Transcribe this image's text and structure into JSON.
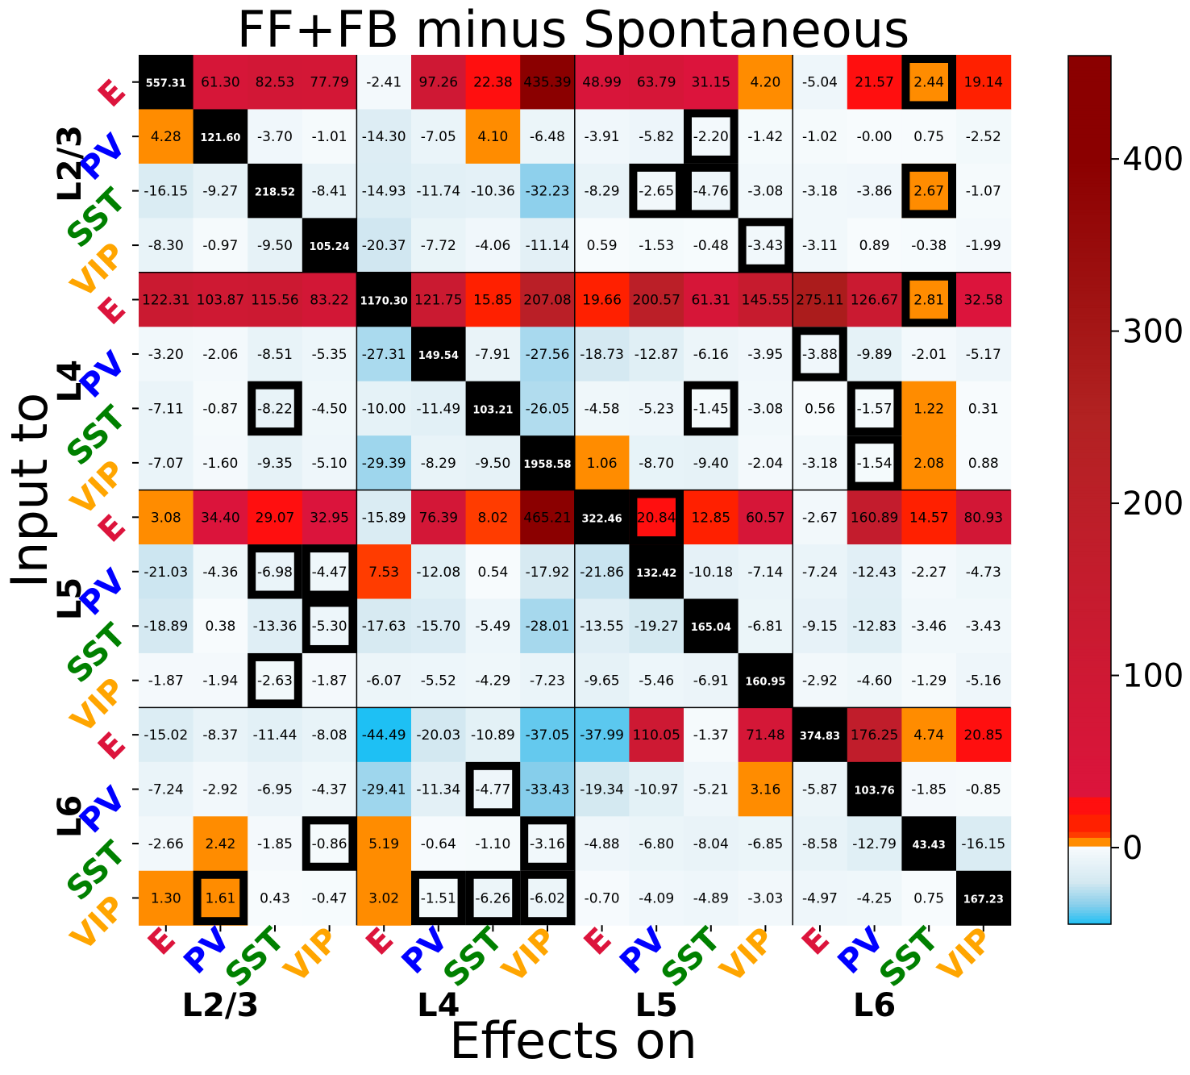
{
  "chart_data": {
    "type": "heatmap",
    "title": "FF+FB minus Spontaneous",
    "xlabel": "Effects on",
    "ylabel": "Input to",
    "layers": [
      "L2/3",
      "L4",
      "L5",
      "L6"
    ],
    "cell_types": [
      "E",
      "PV",
      "SST",
      "VIP"
    ],
    "type_colors": {
      "E": "#dc143c",
      "PV": "#0000ff",
      "SST": "#008000",
      "VIP": "#ffa500"
    },
    "values": [
      [
        "557.31",
        "61.30",
        "82.53",
        "77.79",
        "-2.41",
        "97.26",
        "22.38",
        "435.39",
        "48.99",
        "63.79",
        "31.15",
        "4.20",
        "-5.04",
        "21.57",
        "2.44",
        "19.14"
      ],
      [
        "4.28",
        "121.60",
        "-3.70",
        "-1.01",
        "-14.30",
        "-7.05",
        "4.10",
        "-6.48",
        "-3.91",
        "-5.82",
        "-2.20",
        "-1.42",
        "-1.02",
        "-0.00",
        "0.75",
        "-2.52"
      ],
      [
        "-16.15",
        "-9.27",
        "218.52",
        "-8.41",
        "-14.93",
        "-11.74",
        "-10.36",
        "-32.23",
        "-8.29",
        "-2.65",
        "-4.76",
        "-3.08",
        "-3.18",
        "-3.86",
        "2.67",
        "-1.07"
      ],
      [
        "-8.30",
        "-0.97",
        "-9.50",
        "105.24",
        "-20.37",
        "-7.72",
        "-4.06",
        "-11.14",
        "0.59",
        "-1.53",
        "-0.48",
        "-3.43",
        "-3.11",
        "0.89",
        "-0.38",
        "-1.99"
      ],
      [
        "122.31",
        "103.87",
        "115.56",
        "83.22",
        "1170.30",
        "121.75",
        "15.85",
        "207.08",
        "19.66",
        "200.57",
        "61.31",
        "145.55",
        "275.11",
        "126.67",
        "2.81",
        "32.58"
      ],
      [
        "-3.20",
        "-2.06",
        "-8.51",
        "-5.35",
        "-27.31",
        "149.54",
        "-7.91",
        "-27.56",
        "-18.73",
        "-12.87",
        "-6.16",
        "-3.95",
        "-3.88",
        "-9.89",
        "-2.01",
        "-5.17"
      ],
      [
        "-7.11",
        "-0.87",
        "-8.22",
        "-4.50",
        "-10.00",
        "-11.49",
        "103.21",
        "-26.05",
        "-4.58",
        "-5.23",
        "-1.45",
        "-3.08",
        "0.56",
        "-1.57",
        "1.22",
        "0.31"
      ],
      [
        "-7.07",
        "-1.60",
        "-9.35",
        "-5.10",
        "-29.39",
        "-8.29",
        "-9.50",
        "1958.58",
        "1.06",
        "-8.70",
        "-9.40",
        "-2.04",
        "-3.18",
        "-1.54",
        "2.08",
        "0.88"
      ],
      [
        "3.08",
        "34.40",
        "29.07",
        "32.95",
        "-15.89",
        "76.39",
        "8.02",
        "465.21",
        "322.46",
        "20.84",
        "12.85",
        "60.57",
        "-2.67",
        "160.89",
        "14.57",
        "80.93"
      ],
      [
        "-21.03",
        "-4.36",
        "-6.98",
        "-4.47",
        "7.53",
        "-12.08",
        "0.54",
        "-17.92",
        "-21.86",
        "132.42",
        "-10.18",
        "-7.14",
        "-7.24",
        "-12.43",
        "-2.27",
        "-4.73"
      ],
      [
        "-18.89",
        "0.38",
        "-13.36",
        "-5.30",
        "-17.63",
        "-15.70",
        "-5.49",
        "-28.01",
        "-13.55",
        "-19.27",
        "165.04",
        "-6.81",
        "-9.15",
        "-12.83",
        "-3.46",
        "-3.43"
      ],
      [
        "-1.87",
        "-1.94",
        "-2.63",
        "-1.87",
        "-6.07",
        "-5.52",
        "-4.29",
        "-7.23",
        "-9.65",
        "-5.46",
        "-6.91",
        "160.95",
        "-2.92",
        "-4.60",
        "-1.29",
        "-5.16"
      ],
      [
        "-15.02",
        "-8.37",
        "-11.44",
        "-8.08",
        "-44.49",
        "-20.03",
        "-10.89",
        "-37.05",
        "-37.99",
        "110.05",
        "-1.37",
        "71.48",
        "374.83",
        "176.25",
        "4.74",
        "20.85"
      ],
      [
        "-7.24",
        "-2.92",
        "-6.95",
        "-4.37",
        "-29.41",
        "-11.34",
        "-4.77",
        "-33.43",
        "-19.34",
        "-10.97",
        "-5.21",
        "3.16",
        "-5.87",
        "103.76",
        "-1.85",
        "-0.85"
      ],
      [
        "-2.66",
        "2.42",
        "-1.85",
        "-0.86",
        "5.19",
        "-0.64",
        "-1.10",
        "-3.16",
        "-4.88",
        "-6.80",
        "-8.04",
        "-6.85",
        "-8.58",
        "-12.79",
        "43.43",
        "-16.15"
      ],
      [
        "1.30",
        "1.61",
        "0.43",
        "-0.47",
        "3.02",
        "-1.51",
        "-6.26",
        "-6.02",
        "-0.70",
        "-4.09",
        "-4.89",
        "-3.03",
        "-4.97",
        "-4.25",
        "0.75",
        "167.23"
      ]
    ],
    "highlighted_cells": [
      [
        0,
        14
      ],
      [
        1,
        10
      ],
      [
        2,
        9
      ],
      [
        2,
        10
      ],
      [
        2,
        14
      ],
      [
        3,
        11
      ],
      [
        4,
        14
      ],
      [
        5,
        12
      ],
      [
        6,
        2
      ],
      [
        6,
        10
      ],
      [
        6,
        13
      ],
      [
        7,
        13
      ],
      [
        8,
        9
      ],
      [
        9,
        2
      ],
      [
        9,
        3
      ],
      [
        10,
        3
      ],
      [
        11,
        2
      ],
      [
        13,
        6
      ],
      [
        14,
        3
      ],
      [
        14,
        7
      ],
      [
        15,
        1
      ],
      [
        15,
        5
      ],
      [
        15,
        6
      ],
      [
        15,
        7
      ]
    ],
    "colorbar": {
      "ticks": [
        "0",
        "100",
        "200",
        "300",
        "400"
      ],
      "range": [
        -44.49,
        460
      ]
    }
  }
}
